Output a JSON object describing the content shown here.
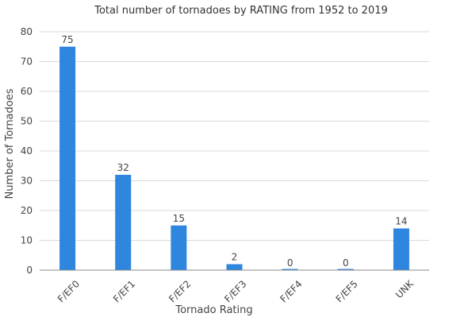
{
  "chart_data": {
    "type": "bar",
    "title": "Total number of tornadoes by RATING from 1952 to 2019",
    "xlabel": "Tornado Rating",
    "ylabel": "Number of Tornadoes",
    "categories": [
      "F/EF0",
      "F/EF1",
      "F/EF2",
      "F/EF3",
      "F/EF4",
      "F/EF5",
      "UNK"
    ],
    "values": [
      75,
      32,
      15,
      2,
      0,
      0,
      14
    ],
    "data_labels": [
      "75",
      "32",
      "15",
      "2",
      "0",
      "0",
      "14"
    ],
    "ylim": [
      0,
      80
    ],
    "yticks": [
      0,
      10,
      20,
      30,
      40,
      50,
      60,
      70,
      80
    ],
    "ytick_labels": [
      "0",
      "10",
      "20",
      "30",
      "40",
      "50",
      "60",
      "70",
      "80"
    ],
    "grid": true,
    "legend": "none",
    "bar_color": "#2e86de"
  }
}
